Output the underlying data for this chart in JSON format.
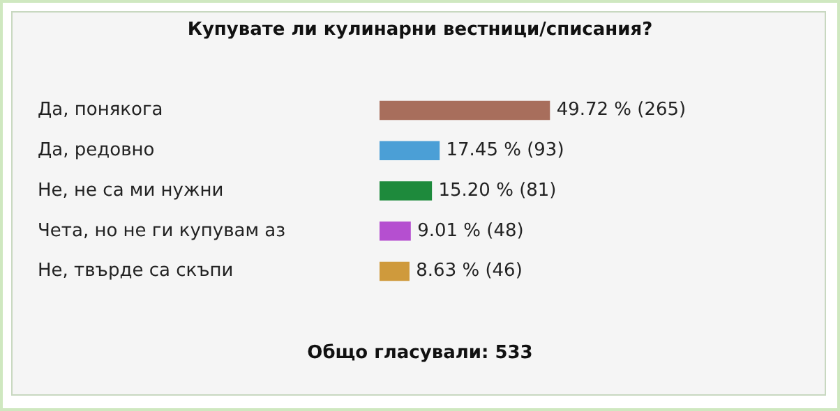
{
  "chart_data": {
    "type": "bar",
    "orientation": "horizontal",
    "title": "Купувате ли кулинарни вестници/списания?",
    "categories": [
      "Да, понякога",
      "Да, редовно",
      "Не, не са ми нужни",
      "Чета, но не ги купувам аз",
      "Не, твърде са скъпи"
    ],
    "values": [
      49.72,
      17.45,
      15.2,
      9.01,
      8.63
    ],
    "colors": [
      "#a86e5c",
      "#4b9fd6",
      "#1e8a3c",
      "#b54fd0",
      "#cf9a3c"
    ],
    "value_labels": [
      "49.72 % (265)",
      "17.45 % (93)",
      "15.20 % (81)",
      "9.01 % (48)",
      "8.63 % (46)"
    ],
    "annotations": [
      "Общо гласували: 533"
    ],
    "grid": false,
    "legend": false
  }
}
